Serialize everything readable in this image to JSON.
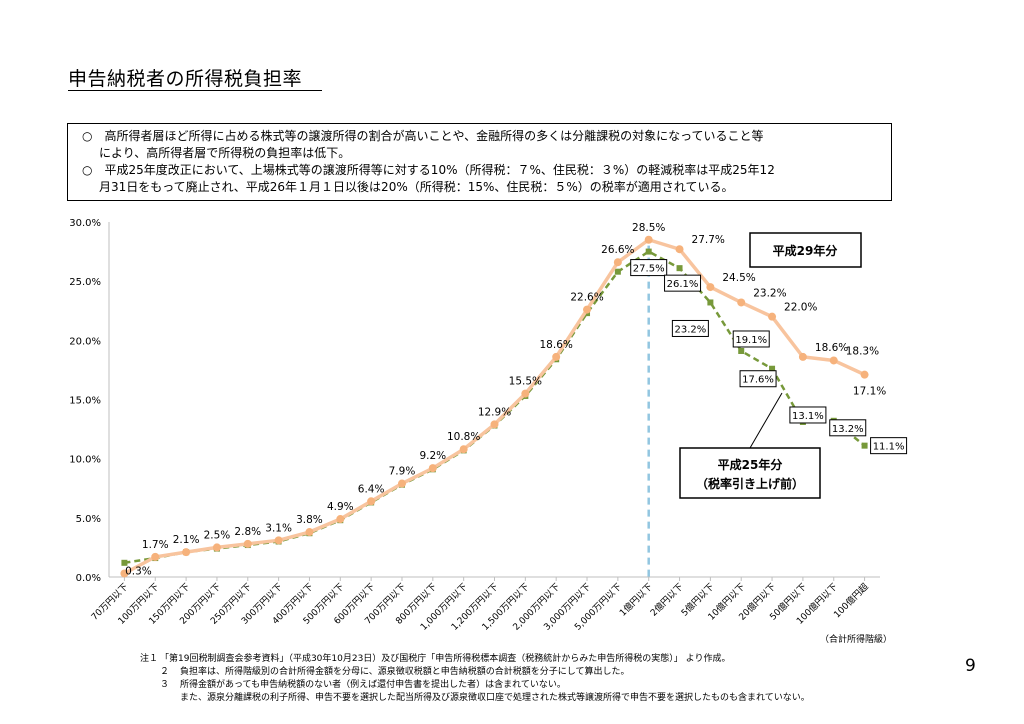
{
  "title": "申告納税者の所得税負担率",
  "notes_box": [
    {
      "bullet": "○",
      "line1": "高所得者層ほど所得に占める株式等の譲渡所得の割合が高いことや、金融所得の多くは分離課税の対象になっていること等",
      "line2": "により、高所得者層で所得税の負担率は低下。"
    },
    {
      "bullet": "○",
      "line1": "平成25年度改正において、上場株式等の譲渡所得等に対する10%（所得税：７%、住民税：３%）の軽減税率は平成25年12",
      "line2": "月31日をもって廃止され、平成26年１月１日以後は20%（所得税：15%、住民税：５%）の税率が適用されている。"
    }
  ],
  "colors": {
    "h29": "#f8c49e",
    "h29_marker": "#f6b27c",
    "h25": "#77993a",
    "dashed_vertical": "#92c6e0",
    "axis": "#bfbfbf"
  },
  "chart_data": {
    "type": "line",
    "ylim": [
      0,
      30
    ],
    "y_ticks": [
      "0.0%",
      "5.0%",
      "10.0%",
      "15.0%",
      "20.0%",
      "25.0%",
      "30.0%"
    ],
    "categories": [
      "70万円以下",
      "100万円以下",
      "150万円以下",
      "200万円以下",
      "250万円以下",
      "300万円以下",
      "400万円以下",
      "500万円以下",
      "600万円以下",
      "700万円以下",
      "800万円以下",
      "1,000万円以下",
      "1,200万円以下",
      "1,500万円以下",
      "2,000万円以下",
      "3,000万円以下",
      "5,000万円以下",
      "1億円以下",
      "2億円以下",
      "5億円以下",
      "10億円以下",
      "20億円以下",
      "50億円以下",
      "100億円以下",
      "100億円超"
    ],
    "xlabel": "（合計所得階級）",
    "series": [
      {
        "name": "平成29年分",
        "values": [
          0.3,
          1.7,
          2.1,
          2.5,
          2.8,
          3.1,
          3.8,
          4.9,
          6.4,
          7.9,
          9.2,
          10.8,
          12.9,
          15.5,
          18.6,
          22.6,
          26.6,
          28.5,
          27.7,
          24.5,
          23.2,
          22.0,
          18.6,
          18.3,
          17.1
        ],
        "labels": [
          "0.3%",
          "1.7%",
          "2.1%",
          "2.5%",
          "2.8%",
          "3.1%",
          "3.8%",
          "4.9%",
          "6.4%",
          "7.9%",
          "9.2%",
          "10.8%",
          "12.9%",
          "15.5%",
          "18.6%",
          "22.6%",
          "26.6%",
          "28.5%",
          "27.7%",
          "24.5%",
          "23.2%",
          "22.0%",
          "18.6%",
          "18.3%",
          "17.1%"
        ]
      },
      {
        "name": "平成25年分（税率引き上げ前）",
        "values": [
          1.2,
          1.6,
          2.1,
          2.4,
          2.7,
          3.0,
          3.7,
          4.8,
          6.3,
          7.8,
          9.1,
          10.7,
          12.8,
          15.3,
          18.4,
          22.3,
          25.8,
          27.5,
          26.1,
          23.2,
          19.1,
          17.6,
          13.1,
          13.2,
          11.1
        ],
        "labels": [
          "27.5%",
          "26.1%",
          "23.2%",
          "19.1%",
          "17.6%",
          "13.1%",
          "13.2%",
          "11.1%"
        ]
      }
    ],
    "callout_h29": "平成29年分",
    "callout_h25_line1": "平成25年分",
    "callout_h25_line2": "（税率引き上げ前）"
  },
  "footnotes": [
    {
      "mark": "注１",
      "text": "「第19回税制調査会参考資料」（平成30年10月23日）及び国税庁「申告所得税標本調査（税務統計からみた申告所得税の実態）」 より作成。"
    },
    {
      "mark": "２",
      "text": "負担率は、所得階級別の合計所得金額を分母に、源泉徴収税額と申告納税額の合計税額を分子にして算出した。"
    },
    {
      "mark": "３",
      "text": "所得金額があっても申告納税額のない者（例えば還付申告書を提出した者）は含まれていない。"
    },
    {
      "mark": "",
      "text": "また、源泉分離課税の利子所得、申告不要を選択した配当所得及び源泉徴収口座で処理された株式等譲渡所得で申告不要を選択したものも含まれていない。"
    }
  ],
  "page_number": "9"
}
